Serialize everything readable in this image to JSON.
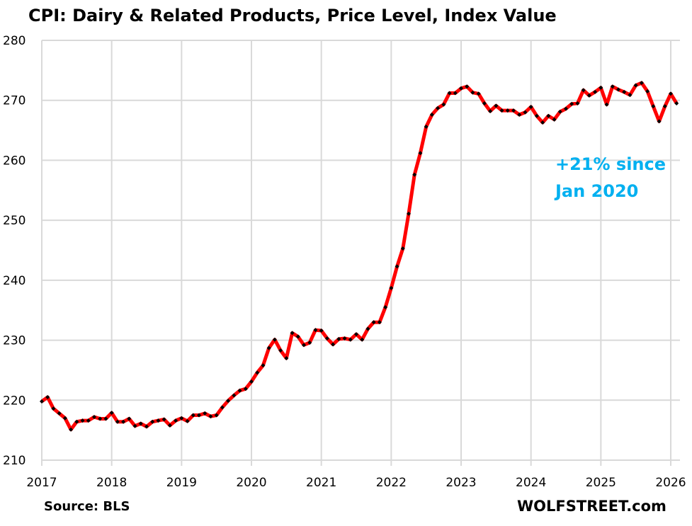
{
  "chart_data": {
    "type": "line",
    "title": "CPI: Dairy & Related Products, Price Level, Index Value",
    "xlabel": "",
    "ylabel": "",
    "ylim": [
      210,
      280
    ],
    "yticks": [
      "210",
      "220",
      "230",
      "240",
      "250",
      "260",
      "270",
      "280"
    ],
    "xlim": [
      2017,
      2026
    ],
    "xticks": [
      "2017",
      "2018",
      "2019",
      "2020",
      "2021",
      "2022",
      "2023",
      "2024",
      "2025",
      "2026"
    ],
    "grid": true,
    "legend": "none",
    "annotation": {
      "line1": "+21% since",
      "line2": "Jan 2020",
      "color": "#00B0F0"
    },
    "source": "Source: BLS",
    "watermark": "WOLFSTREET.com",
    "colors": {
      "line": "#FF0000",
      "marker": "#000000",
      "grid": "#D9D9D9"
    },
    "start": {
      "year": 2017,
      "month": 1
    },
    "series": [
      {
        "name": "Dairy & Related Products CPI",
        "values": [
          219.8,
          220.5,
          218.6,
          217.8,
          217.0,
          215.1,
          216.4,
          216.6,
          216.6,
          217.2,
          216.9,
          216.9,
          217.9,
          216.4,
          216.4,
          216.9,
          215.7,
          216.1,
          215.6,
          216.4,
          216.6,
          216.8,
          215.8,
          216.6,
          217.0,
          216.5,
          217.5,
          217.5,
          217.8,
          217.3,
          217.5,
          218.8,
          219.9,
          220.8,
          221.6,
          221.9,
          223.1,
          224.6,
          225.8,
          228.7,
          230.1,
          228.3,
          227.0,
          231.2,
          230.6,
          229.2,
          229.6,
          231.7,
          231.6,
          230.3,
          229.3,
          230.2,
          230.3,
          230.1,
          231.0,
          230.1,
          231.9,
          233.0,
          233.0,
          235.5,
          238.7,
          242.3,
          245.3,
          251.1,
          257.6,
          261.2,
          265.6,
          267.6,
          268.7,
          269.3,
          271.2,
          271.2,
          272.0,
          272.3,
          271.3,
          271.1,
          269.5,
          268.2,
          269.1,
          268.3,
          268.3,
          268.3,
          267.6,
          268.0,
          268.9,
          267.4,
          266.3,
          267.4,
          266.8,
          268.1,
          268.6,
          269.4,
          269.5,
          271.7,
          270.8,
          271.4,
          272.1,
          269.3,
          272.3,
          271.8,
          271.4,
          270.9,
          272.5,
          272.9,
          271.5,
          269.0,
          266.5,
          269.0,
          271.1,
          269.5
        ]
      }
    ]
  }
}
